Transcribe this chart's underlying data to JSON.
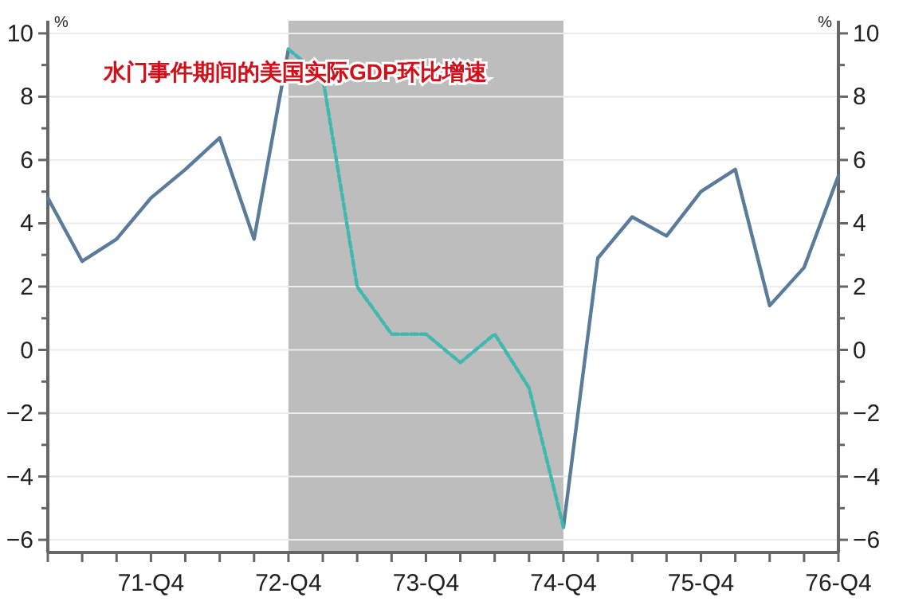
{
  "chart_data": {
    "type": "line",
    "title": "水门事件期间的美国实际GDP环比增速",
    "ylabel": "%",
    "y2label": "%",
    "categories": [
      null,
      null,
      null,
      "71-Q4",
      null,
      null,
      null,
      "72-Q4",
      null,
      null,
      null,
      "73-Q4",
      null,
      null,
      null,
      "74-Q4",
      null,
      null,
      null,
      "75-Q4",
      null,
      null,
      null,
      "76-Q4"
    ],
    "series": [
      {
        "color": "#5b7b9a",
        "line_style": "solid",
        "values": [
          4.8,
          2.8,
          3.5,
          4.8,
          5.7,
          6.7,
          3.5,
          9.5,
          null,
          null,
          null,
          null,
          null,
          null,
          null,
          -5.6,
          2.9,
          4.2,
          3.6,
          5.0,
          5.7,
          1.4,
          2.6,
          5.5
        ]
      },
      {
        "color": "#3fb8b0",
        "line_style": "dashed",
        "values": [
          null,
          null,
          null,
          null,
          null,
          null,
          null,
          9.5,
          8.6,
          2.0,
          0.5,
          0.5,
          -0.4,
          0.5,
          -1.2,
          -5.6,
          null,
          null,
          null,
          null,
          null,
          null,
          null,
          null
        ]
      }
    ],
    "ylim": [
      -6.4,
      10.4
    ],
    "yticks": [
      -6,
      -4,
      -2,
      0,
      2,
      4,
      6,
      8,
      10
    ],
    "y2lim": [
      -6.4,
      10.4
    ],
    "y2ticks": [
      -6,
      -4,
      -2,
      0,
      2,
      4,
      6,
      8,
      10
    ],
    "bands": [
      {
        "axis": "x",
        "from": "72-Q4",
        "to": "74-Q4",
        "color": "#bdbdbd"
      }
    ],
    "grid": "y"
  }
}
